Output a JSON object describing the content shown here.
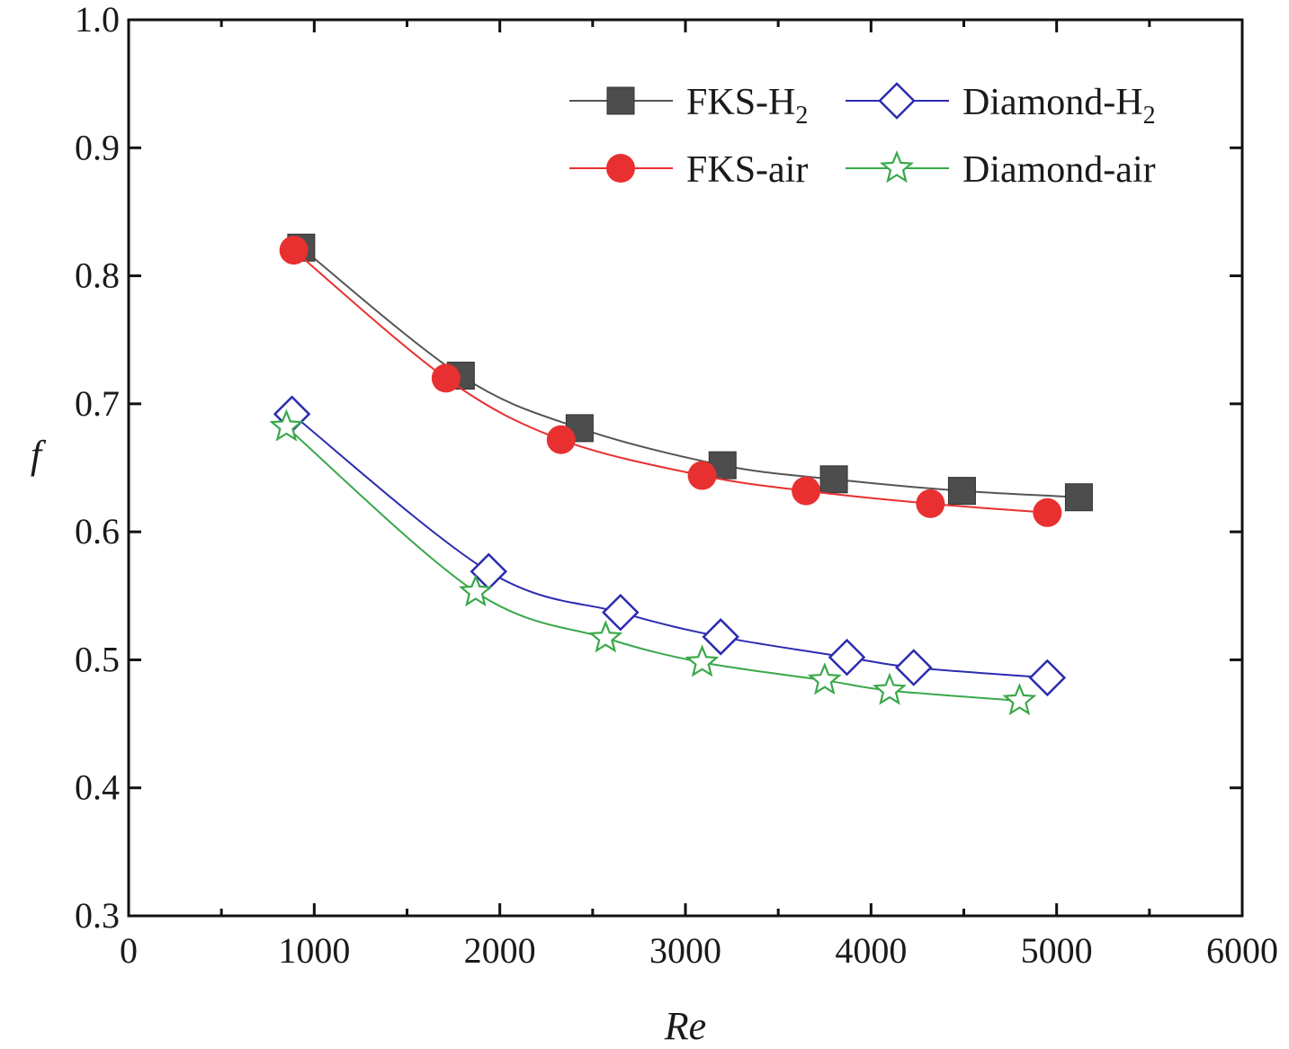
{
  "chart_data": {
    "type": "line",
    "title": "",
    "xlabel": "Re",
    "ylabel": "f",
    "xlim": [
      0,
      6000
    ],
    "ylim": [
      0.3,
      1.0
    ],
    "x_ticks": [
      0,
      1000,
      2000,
      3000,
      4000,
      5000,
      6000
    ],
    "x_tick_labels": [
      "0",
      "1000",
      "2000",
      "3000",
      "4000",
      "5000",
      "6000"
    ],
    "y_ticks": [
      0.3,
      0.4,
      0.5,
      0.6,
      0.7,
      0.8,
      0.9,
      1.0
    ],
    "y_tick_labels": [
      "0.3",
      "0.4",
      "0.5",
      "0.6",
      "0.7",
      "0.8",
      "0.9",
      "1.0"
    ],
    "grid": false,
    "legend_position": "top-right",
    "series": [
      {
        "name": "FKS-H2",
        "label_main": "FKS-H",
        "label_sub": "2",
        "color": "#555555",
        "marker": "filled-square",
        "points": [
          [
            930,
            0.822
          ],
          [
            1790,
            0.722
          ],
          [
            2430,
            0.681
          ],
          [
            3200,
            0.652
          ],
          [
            3800,
            0.641
          ],
          [
            4490,
            0.632
          ],
          [
            5120,
            0.627
          ]
        ]
      },
      {
        "name": "FKS-air",
        "label_main": "FKS-air",
        "label_sub": "",
        "color": "#e83030",
        "marker": "filled-circle",
        "points": [
          [
            890,
            0.82
          ],
          [
            1710,
            0.72
          ],
          [
            2330,
            0.672
          ],
          [
            3090,
            0.644
          ],
          [
            3650,
            0.632
          ],
          [
            4320,
            0.622
          ],
          [
            4950,
            0.615
          ]
        ]
      },
      {
        "name": "Diamond-H2",
        "label_main": "Diamond-H",
        "label_sub": "2",
        "color": "#2b2bb0",
        "marker": "open-diamond",
        "points": [
          [
            880,
            0.692
          ],
          [
            1940,
            0.569
          ],
          [
            2650,
            0.537
          ],
          [
            3190,
            0.518
          ],
          [
            3870,
            0.502
          ],
          [
            4230,
            0.494
          ],
          [
            4950,
            0.486
          ]
        ]
      },
      {
        "name": "Diamond-air",
        "label_main": "Diamond-air",
        "label_sub": "",
        "color": "#3aa84a",
        "marker": "open-star",
        "points": [
          [
            850,
            0.682
          ],
          [
            1870,
            0.553
          ],
          [
            2570,
            0.517
          ],
          [
            3090,
            0.498
          ],
          [
            3750,
            0.484
          ],
          [
            4100,
            0.476
          ],
          [
            4800,
            0.468
          ]
        ]
      }
    ]
  }
}
